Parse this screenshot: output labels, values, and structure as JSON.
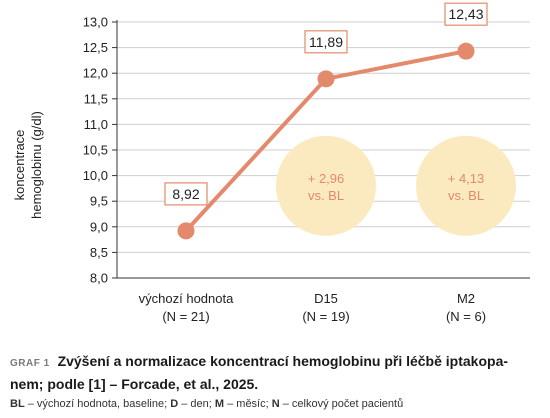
{
  "chart_data": {
    "type": "line",
    "ylabel_line1": "koncentrace",
    "ylabel_line2": "hemoglobinu (g/dl)",
    "ylim": [
      8.0,
      13.0
    ],
    "yticks": [
      "8,0",
      "8,5",
      "9,0",
      "9,5",
      "10,0",
      "10,5",
      "11,0",
      "11,5",
      "12,0",
      "12,5",
      "13,0"
    ],
    "grid": true,
    "categories": [
      {
        "line1": "výchozí hodnota",
        "line2": "(N = 21)"
      },
      {
        "line1": "D15",
        "line2": "(N = 19)"
      },
      {
        "line1": "M2",
        "line2": "(N = 6)"
      }
    ],
    "series": [
      {
        "values": [
          8.92,
          11.89,
          12.43
        ],
        "labels": [
          "8,92",
          "11,89",
          "12,43"
        ]
      }
    ],
    "annotations": [
      {
        "category_index": 1,
        "center_y": 9.8,
        "line1": "+ 2,96",
        "line2": "vs. BL"
      },
      {
        "category_index": 2,
        "center_y": 9.8,
        "line1": "+ 4,13",
        "line2": "vs. BL"
      }
    ],
    "colors": {
      "line": "#e3896c",
      "marker": "#e3896c",
      "circle": "#fbeac0",
      "annotation_text": "#e3896c",
      "label_border": "#e3896c",
      "axis": "#333333",
      "grid": "#cfcfcf"
    }
  },
  "caption": {
    "tag": "GRAF 1",
    "title_line1": "Zvýšení a normalizace koncentrací hemoglobinu při léčbě iptakopa-",
    "title_line2": "nem; podle [1] – Forcade, et al., 2025."
  },
  "legend": {
    "bl_key": "BL",
    "bl_text": " – výchozí hodnota, baseline; ",
    "d_key": "D",
    "d_text": " – den; ",
    "m_key": "M",
    "m_text": " – měsíc; ",
    "n_key": "N",
    "n_text": " – celkový počet pacientů"
  }
}
